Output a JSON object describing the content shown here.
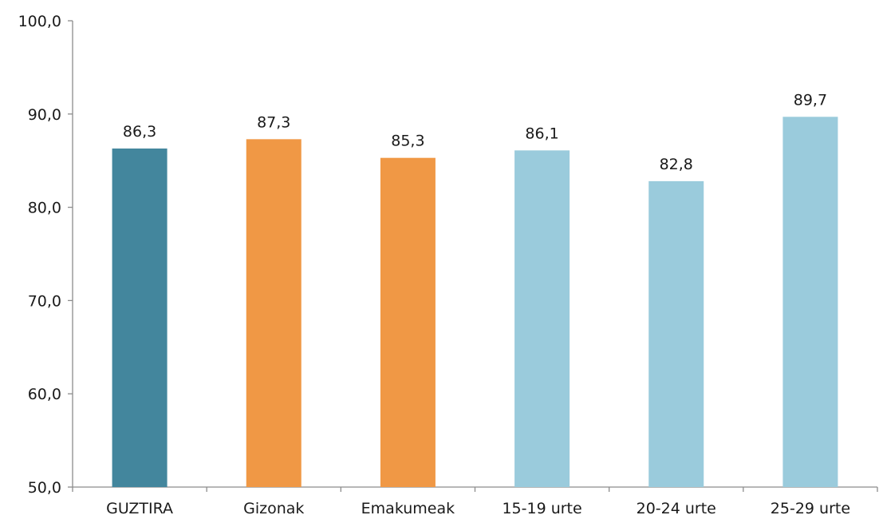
{
  "chart_data": {
    "type": "bar",
    "categories": [
      "GUZTIRA",
      "Gizonak",
      "Emakumeak",
      "15-19 urte",
      "20-24 urte",
      "25-29 urte"
    ],
    "values": [
      86.3,
      87.3,
      85.3,
      86.1,
      82.8,
      89.7
    ],
    "value_labels": [
      "86,3",
      "87,3",
      "85,3",
      "86,1",
      "82,8",
      "89,7"
    ],
    "bar_colors": [
      "#43869d",
      "#f09845",
      "#f09845",
      "#9acbdc",
      "#9acbdc",
      "#9acbdc"
    ],
    "ylim": [
      50,
      100
    ],
    "yticks": [
      50,
      60,
      70,
      80,
      90,
      100
    ],
    "ytick_labels": [
      "50,0",
      "60,0",
      "70,0",
      "80,0",
      "90,0",
      "100,0"
    ],
    "grid": false,
    "title": "",
    "xlabel": "",
    "ylabel": ""
  },
  "colors": {
    "axis": "#8c8c8c",
    "text": "#1a1a1a"
  }
}
